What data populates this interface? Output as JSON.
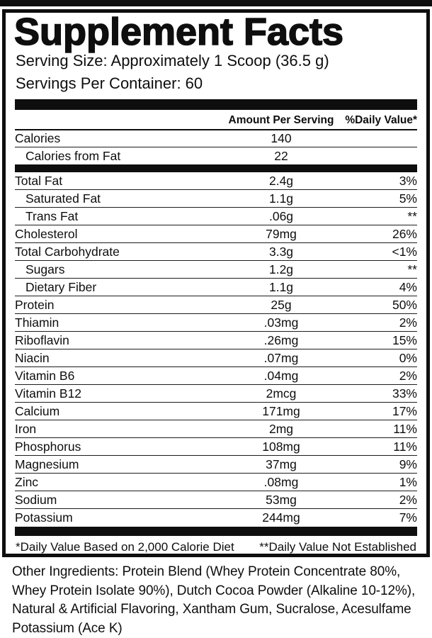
{
  "label": {
    "title": "Supplement Facts",
    "serving_size": "Serving Size: Approximately 1 Scoop (36.5 g)",
    "servings_per_container": "Servings Per Container: 60",
    "columns": {
      "amount_header": "Amount Per Serving",
      "dv_header": "%Daily Value*"
    },
    "calorie_rows": [
      {
        "name": "Calories",
        "amount": "140",
        "dv": "",
        "indent": false
      },
      {
        "name": "Calories from Fat",
        "amount": "22",
        "dv": "",
        "indent": true
      }
    ],
    "nutrient_rows": [
      {
        "name": "Total Fat",
        "amount": "2.4g",
        "dv": "3%",
        "indent": false
      },
      {
        "name": "Saturated Fat",
        "amount": "1.1g",
        "dv": "5%",
        "indent": true
      },
      {
        "name": "Trans Fat",
        "amount": ".06g",
        "dv": "**",
        "indent": true
      },
      {
        "name": "Cholesterol",
        "amount": "79mg",
        "dv": "26%",
        "indent": false
      },
      {
        "name": "Total Carbohydrate",
        "amount": "3.3g",
        "dv": "<1%",
        "indent": false
      },
      {
        "name": "Sugars",
        "amount": "1.2g",
        "dv": "**",
        "indent": true
      },
      {
        "name": "Dietary Fiber",
        "amount": "1.1g",
        "dv": "4%",
        "indent": true
      },
      {
        "name": "Protein",
        "amount": "25g",
        "dv": "50%",
        "indent": false
      },
      {
        "name": "Thiamin",
        "amount": ".03mg",
        "dv": "2%",
        "indent": false
      },
      {
        "name": "Riboflavin",
        "amount": ".26mg",
        "dv": "15%",
        "indent": false
      },
      {
        "name": "Niacin",
        "amount": ".07mg",
        "dv": "0%",
        "indent": false
      },
      {
        "name": "Vitamin B6",
        "amount": ".04mg",
        "dv": "2%",
        "indent": false
      },
      {
        "name": "Vitamin B12",
        "amount": "2mcg",
        "dv": "33%",
        "indent": false
      },
      {
        "name": "Calcium",
        "amount": "171mg",
        "dv": "17%",
        "indent": false
      },
      {
        "name": "Iron",
        "amount": "2mg",
        "dv": "11%",
        "indent": false
      },
      {
        "name": "Phosphorus",
        "amount": "108mg",
        "dv": "11%",
        "indent": false
      },
      {
        "name": "Magnesium",
        "amount": "37mg",
        "dv": "9%",
        "indent": false
      },
      {
        "name": "Zinc",
        "amount": ".08mg",
        "dv": "1%",
        "indent": false
      },
      {
        "name": "Sodium",
        "amount": "53mg",
        "dv": "2%",
        "indent": false
      },
      {
        "name": "Potassium",
        "amount": "244mg",
        "dv": "7%",
        "indent": false
      }
    ],
    "footnotes": {
      "left": "*Daily Value Based on 2,000 Calorie Diet",
      "right": "**Daily Value Not Established"
    },
    "other_ingredients": "Other Ingredients: Protein Blend (Whey Protein Concentrate 80%, Whey Protein Isolate 90%), Dutch Cocoa Powder (Alkaline 10-12%), Natural & Artificial Flavoring, Xantham Gum, Sucralose, Acesulfame Potassium (Ace K)",
    "colors": {
      "ink": "#0e0e0e",
      "background": "#ffffff"
    }
  }
}
